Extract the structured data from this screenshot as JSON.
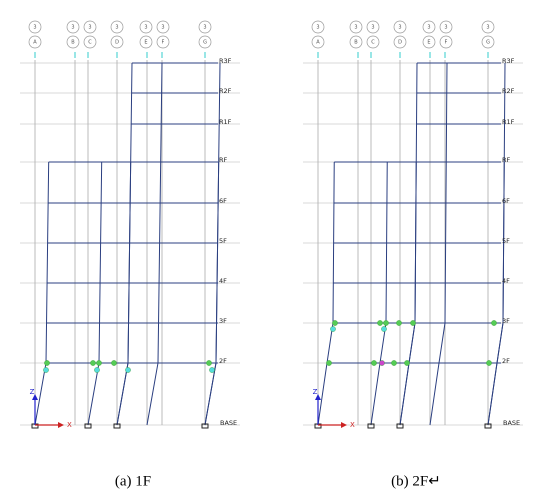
{
  "grid_bubbles": [
    {
      "number": "3",
      "letter": "A"
    },
    {
      "number": "3",
      "letter": "B"
    },
    {
      "number": "3",
      "letter": "C"
    },
    {
      "number": "3",
      "letter": "D"
    },
    {
      "number": "3",
      "letter": "E"
    },
    {
      "number": "3",
      "letter": "F"
    },
    {
      "number": "3",
      "letter": "G"
    }
  ],
  "stories": [
    "R3F",
    "R2F",
    "R1F",
    "RF",
    "6F",
    "5F",
    "4F",
    "3F",
    "2F",
    "BASE"
  ],
  "axes": {
    "z": "Z",
    "x": "X"
  },
  "panels": [
    {
      "caption": "(a) 1F"
    },
    {
      "caption": "(b) 2F↵"
    }
  ]
}
